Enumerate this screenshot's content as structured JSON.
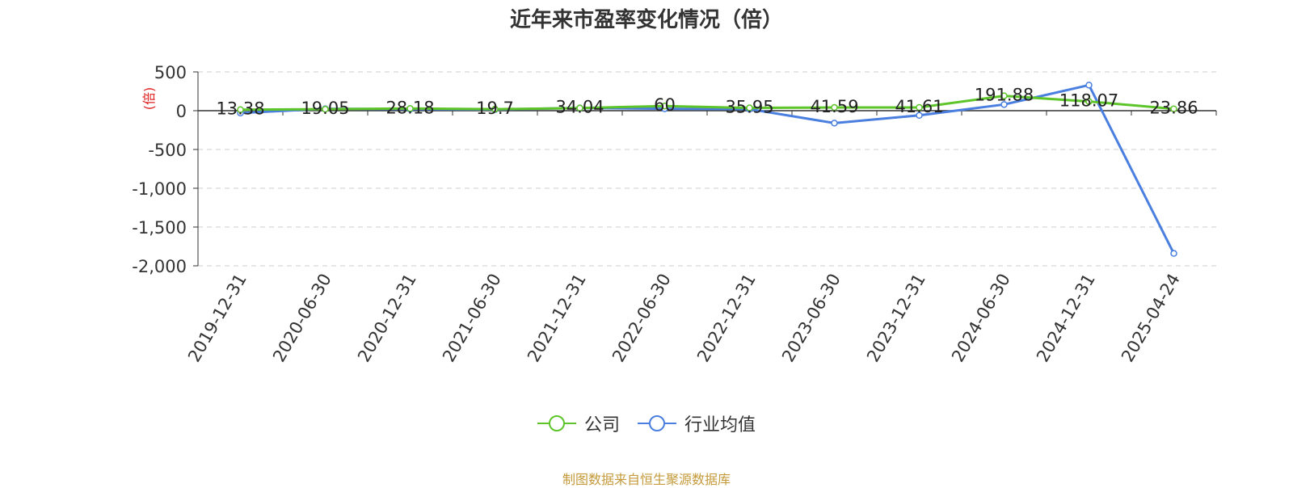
{
  "chart_data": {
    "type": "line",
    "title": "近年来市盈率变化情况（倍）",
    "ylabel": "(倍)",
    "xlabel": "",
    "categories": [
      "2019-12-31",
      "2020-06-30",
      "2020-12-31",
      "2021-06-30",
      "2021-12-31",
      "2022-06-30",
      "2022-12-31",
      "2023-06-30",
      "2023-12-31",
      "2024-06-30",
      "2024-12-31",
      "2025-04-24"
    ],
    "series": [
      {
        "name": "公司",
        "color": "#5dc52a",
        "values": [
          13.38,
          19.05,
          28.18,
          19.7,
          34.04,
          60,
          35.95,
          41.59,
          41.61,
          191.88,
          118.07,
          23.86
        ],
        "labels": [
          "13.38",
          "19.05",
          "28.18",
          "19.7",
          "34.04",
          "60",
          "35.95",
          "41.59",
          "41.61",
          "191.88",
          "118.07",
          "23.86"
        ]
      },
      {
        "name": "行业均值",
        "color": "#4a7fe0",
        "values": [
          -30,
          25,
          20,
          15,
          35,
          25,
          20,
          -160,
          -60,
          80,
          330,
          -1840
        ]
      }
    ],
    "ylim": [
      -2000,
      500
    ],
    "yticks": [
      500,
      0,
      -500,
      -1000,
      -1500,
      -2000
    ],
    "ytick_labels": [
      "500",
      "0",
      "-500",
      "-1,000",
      "-1,500",
      "-2,000"
    ],
    "grid": true,
    "legend_position": "bottom-center"
  },
  "source_note": "制图数据来自恒生聚源数据库"
}
